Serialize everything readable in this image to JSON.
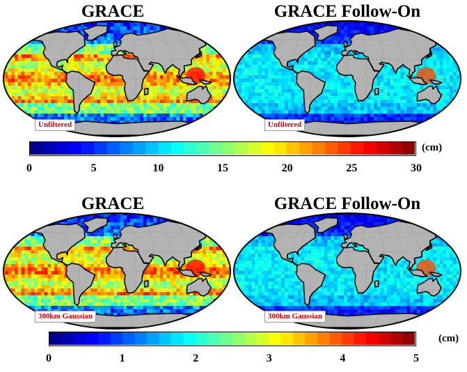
{
  "panels": [
    {
      "title": "GRACE",
      "filter_label": "Unfiltered",
      "scale_id": "top",
      "intensity": "high"
    },
    {
      "title": "GRACE Follow-On",
      "filter_label": "Unfiltered",
      "scale_id": "top",
      "intensity": "low"
    },
    {
      "title": "GRACE",
      "filter_label": "300km Gaussian",
      "scale_id": "bottom",
      "intensity": "high"
    },
    {
      "title": "GRACE Follow-On",
      "filter_label": "300km Gaussian",
      "scale_id": "bottom",
      "intensity": "low"
    }
  ],
  "colorbars": {
    "top": {
      "unit": "(cm)",
      "ticks": [
        "0",
        "5",
        "10",
        "15",
        "20",
        "25",
        "30"
      ],
      "min": 0,
      "max": 30
    },
    "bottom": {
      "unit": "(cm)",
      "ticks": [
        "0",
        "1",
        "2",
        "3",
        "4",
        "5"
      ],
      "min": 0,
      "max": 5
    }
  },
  "colors": {
    "land": "#b3b3b3",
    "coastline": "#000000",
    "filter_label_text": "#d40000",
    "colormap": [
      "#00007f",
      "#0000ff",
      "#007fff",
      "#00ffff",
      "#7fff7f",
      "#ffff00",
      "#ff7f00",
      "#ff0000",
      "#7f0000"
    ]
  }
}
